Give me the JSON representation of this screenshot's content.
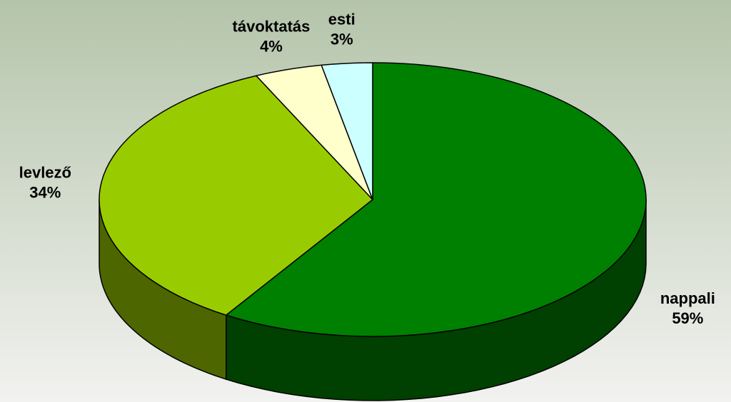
{
  "chart_data": {
    "type": "pie",
    "categories": [
      "nappali",
      "levlező",
      "távoktatás",
      "esti"
    ],
    "values": [
      59,
      34,
      4,
      3
    ],
    "value_labels": [
      "59%",
      "34%",
      "4%",
      "3%"
    ],
    "colors": [
      "#008000",
      "#99cc00",
      "#ffffcc",
      "#ccffff"
    ]
  }
}
